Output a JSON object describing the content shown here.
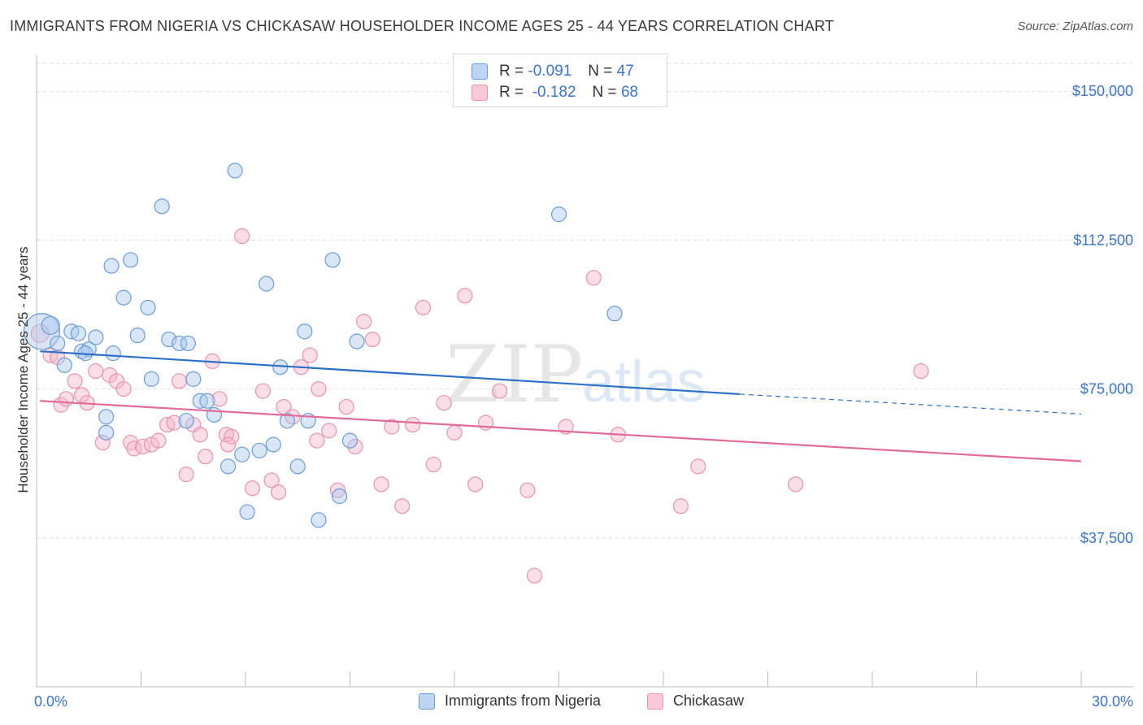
{
  "title": "IMMIGRANTS FROM NIGERIA VS CHICKASAW HOUSEHOLDER INCOME AGES 25 - 44 YEARS CORRELATION CHART",
  "source": "Source: ZipAtlas.com",
  "watermark": {
    "zip": "ZIP",
    "atlas": "atlas"
  },
  "colors": {
    "blue_fill": "#a9c8ee",
    "blue_stroke": "#6b9bd8",
    "blue_line": "#2c6fc6",
    "pink_fill": "#f5b6c9",
    "pink_stroke": "#e892ad",
    "pink_line": "#e06b98",
    "grid": "#dcdcdc",
    "tick_text": "#3b74c8"
  },
  "legend_top": {
    "rows": [
      {
        "r_label": "R =",
        "r_value": "-0.091",
        "n_label": "N =",
        "n_value": "47"
      },
      {
        "r_label": "R =",
        "r_value": "-0.182",
        "n_label": "N =",
        "n_value": "68"
      }
    ]
  },
  "legend_bottom": {
    "items": [
      {
        "label": "Immigrants from Nigeria"
      },
      {
        "label": "Chickasaw"
      }
    ]
  },
  "chart_data": {
    "type": "scatter",
    "title": "IMMIGRANTS FROM NIGERIA VS CHICKASAW HOUSEHOLDER INCOME AGES 25 - 44 YEARS CORRELATION CHART",
    "xlabel": "",
    "ylabel": "Householder Income Ages 25 - 44 years",
    "xlim": [
      0,
      30
    ],
    "ylim": [
      0,
      157000
    ],
    "x_tick_labels": [
      "0.0%",
      "30.0%"
    ],
    "y_ticks": [
      37500,
      75000,
      112500,
      150000
    ],
    "y_tick_labels": [
      "$37,500",
      "$75,000",
      "$112,500",
      "$150,000"
    ],
    "grid": true,
    "legend_position": "top-center",
    "series": [
      {
        "name": "Immigrants from Nigeria",
        "r": -0.091,
        "n": 47,
        "trend": {
          "x0": 0.1,
          "y0": 84500,
          "x1": 20.2,
          "y1": 73700,
          "dashed_to_x": 30,
          "dashed_to_y": 68700
        },
        "points": [
          [
            0.15,
            89500,
            22
          ],
          [
            0.4,
            91000,
            11
          ],
          [
            0.6,
            86500,
            9
          ],
          [
            0.8,
            81000,
            9
          ],
          [
            1.0,
            89500,
            9
          ],
          [
            1.2,
            89000,
            9
          ],
          [
            1.3,
            84500,
            9
          ],
          [
            1.5,
            85000,
            9
          ],
          [
            1.7,
            88000,
            9
          ],
          [
            2.15,
            106000,
            9
          ],
          [
            2.5,
            98000,
            9
          ],
          [
            2.7,
            107500,
            9
          ],
          [
            2.9,
            88500,
            9
          ],
          [
            3.2,
            95500,
            9
          ],
          [
            3.3,
            77500,
            9
          ],
          [
            3.6,
            121000,
            9
          ],
          [
            3.8,
            87500,
            9
          ],
          [
            4.1,
            86500,
            9
          ],
          [
            4.35,
            86500,
            9
          ],
          [
            4.5,
            77500,
            9
          ],
          [
            4.7,
            72000,
            9
          ],
          [
            4.9,
            72000,
            9
          ],
          [
            5.1,
            68500,
            9
          ],
          [
            5.5,
            55500,
            9
          ],
          [
            5.7,
            130000,
            9
          ],
          [
            5.9,
            58500,
            9
          ],
          [
            6.05,
            44000,
            9
          ],
          [
            6.4,
            59500,
            9
          ],
          [
            6.6,
            101500,
            9
          ],
          [
            6.8,
            61000,
            9
          ],
          [
            7.0,
            80500,
            9
          ],
          [
            7.2,
            67000,
            9
          ],
          [
            7.5,
            55500,
            9
          ],
          [
            7.7,
            89500,
            9
          ],
          [
            7.8,
            67000,
            9
          ],
          [
            8.1,
            42000,
            9
          ],
          [
            8.5,
            107500,
            9
          ],
          [
            8.7,
            48000,
            9
          ],
          [
            9.0,
            62000,
            9
          ],
          [
            9.2,
            87000,
            9
          ],
          [
            2.0,
            68000,
            9
          ],
          [
            2.0,
            64000,
            9
          ],
          [
            4.3,
            67000,
            9
          ],
          [
            15.0,
            119000,
            9
          ],
          [
            16.6,
            94000,
            9
          ],
          [
            2.2,
            84000,
            9
          ],
          [
            1.4,
            84000,
            9
          ]
        ]
      },
      {
        "name": "Chickasaw",
        "r": -0.182,
        "n": 68,
        "trend": {
          "x0": 0.1,
          "y0": 72000,
          "x1": 30,
          "y1": 56800
        },
        "points": [
          [
            0.1,
            89000,
            11
          ],
          [
            0.4,
            83500,
            9
          ],
          [
            0.6,
            83000,
            9
          ],
          [
            0.7,
            71000,
            9
          ],
          [
            0.85,
            72500,
            9
          ],
          [
            1.1,
            77000,
            9
          ],
          [
            1.3,
            73500,
            9
          ],
          [
            1.45,
            71500,
            9
          ],
          [
            1.7,
            79500,
            9
          ],
          [
            1.9,
            61500,
            9
          ],
          [
            2.1,
            78500,
            9
          ],
          [
            2.3,
            77000,
            9
          ],
          [
            2.5,
            75000,
            9
          ],
          [
            2.7,
            61500,
            9
          ],
          [
            2.8,
            60000,
            9
          ],
          [
            3.05,
            60500,
            9
          ],
          [
            3.3,
            61000,
            9
          ],
          [
            3.5,
            62000,
            9
          ],
          [
            3.75,
            66000,
            9
          ],
          [
            3.95,
            66500,
            9
          ],
          [
            4.1,
            77000,
            9
          ],
          [
            4.3,
            53500,
            9
          ],
          [
            4.5,
            66000,
            9
          ],
          [
            4.7,
            63500,
            9
          ],
          [
            4.85,
            58000,
            9
          ],
          [
            5.05,
            82000,
            9
          ],
          [
            5.25,
            72500,
            9
          ],
          [
            5.45,
            63500,
            9
          ],
          [
            5.6,
            63000,
            9
          ],
          [
            5.9,
            113500,
            9
          ],
          [
            6.2,
            50000,
            9
          ],
          [
            6.5,
            74500,
            9
          ],
          [
            6.75,
            52000,
            9
          ],
          [
            6.95,
            49000,
            9
          ],
          [
            7.1,
            70500,
            9
          ],
          [
            7.35,
            68000,
            9
          ],
          [
            7.6,
            80500,
            9
          ],
          [
            7.85,
            83500,
            9
          ],
          [
            8.1,
            75000,
            9
          ],
          [
            8.4,
            64500,
            9
          ],
          [
            8.65,
            49500,
            9
          ],
          [
            8.9,
            70500,
            9
          ],
          [
            9.15,
            60500,
            9
          ],
          [
            9.4,
            92000,
            9
          ],
          [
            9.65,
            87500,
            9
          ],
          [
            9.9,
            51000,
            9
          ],
          [
            10.2,
            65500,
            9
          ],
          [
            10.5,
            45500,
            9
          ],
          [
            10.8,
            66000,
            9
          ],
          [
            11.1,
            95500,
            9
          ],
          [
            11.4,
            56000,
            9
          ],
          [
            11.7,
            71500,
            9
          ],
          [
            12.0,
            64000,
            9
          ],
          [
            12.3,
            98500,
            9
          ],
          [
            12.6,
            51000,
            9
          ],
          [
            12.9,
            66500,
            9
          ],
          [
            13.3,
            74500,
            9
          ],
          [
            14.1,
            49500,
            9
          ],
          [
            15.2,
            65500,
            9
          ],
          [
            16.0,
            103000,
            9
          ],
          [
            16.7,
            63500,
            9
          ],
          [
            18.5,
            45500,
            9
          ],
          [
            19.0,
            55500,
            9
          ],
          [
            21.8,
            51000,
            9
          ],
          [
            25.4,
            79500,
            9
          ],
          [
            8.05,
            62000,
            9
          ],
          [
            14.3,
            28000,
            9
          ],
          [
            5.5,
            61000,
            9
          ]
        ]
      }
    ]
  }
}
